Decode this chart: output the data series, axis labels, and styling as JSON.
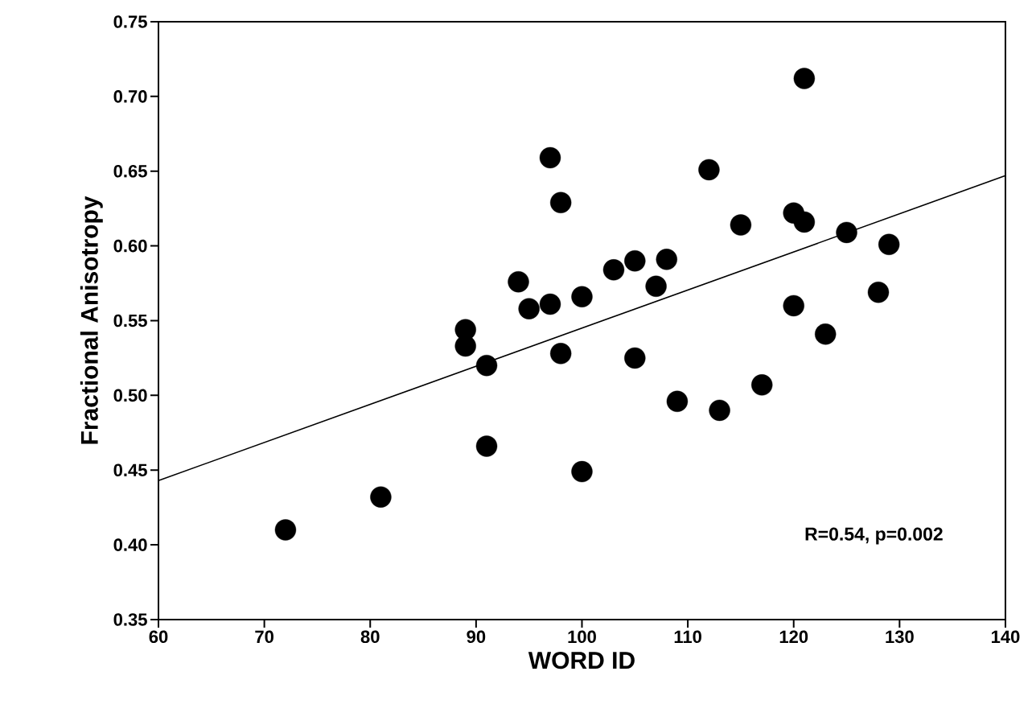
{
  "chart_data": {
    "type": "scatter",
    "xlabel": "WORD ID",
    "ylabel": "Fractional Anisotropy",
    "xlim": [
      60,
      140
    ],
    "xticks": [
      60,
      70,
      80,
      90,
      100,
      110,
      120,
      130,
      140
    ],
    "ylim": [
      0.35,
      0.75
    ],
    "yticks": [
      0.35,
      {
        "value": 0.4,
        "label": "0.40"
      },
      0.45,
      {
        "value": 0.5,
        "label": "0.50"
      },
      0.55,
      {
        "value": 0.6,
        "label": "0.60"
      },
      0.65,
      {
        "value": 0.7,
        "label": "0.70"
      },
      0.75
    ],
    "annotations": [
      "R=0.54, p=0.002"
    ],
    "series": [
      {
        "marker": "circle",
        "color": "#000000",
        "x": [
          72,
          81,
          89,
          89,
          91,
          91,
          94,
          95,
          97,
          97,
          98,
          98,
          100,
          100,
          103,
          105,
          107,
          108,
          105,
          109,
          112,
          113,
          115,
          117,
          120,
          121,
          121,
          120,
          123,
          125,
          128,
          129
        ],
        "values": [
          0.41,
          0.432,
          0.544,
          0.533,
          0.52,
          0.466,
          0.576,
          0.558,
          0.659,
          0.561,
          0.629,
          0.528,
          0.566,
          0.449,
          0.584,
          0.59,
          0.573,
          0.591,
          0.525,
          0.496,
          0.651,
          0.49,
          0.614,
          0.507,
          0.622,
          0.616,
          0.712,
          0.56,
          0.541,
          0.609,
          0.569,
          0.601
        ]
      },
      {
        "type": "line",
        "marker": "none",
        "color": "#000000",
        "x": [
          60,
          140
        ],
        "values": [
          0.443,
          0.647
        ]
      }
    ]
  }
}
